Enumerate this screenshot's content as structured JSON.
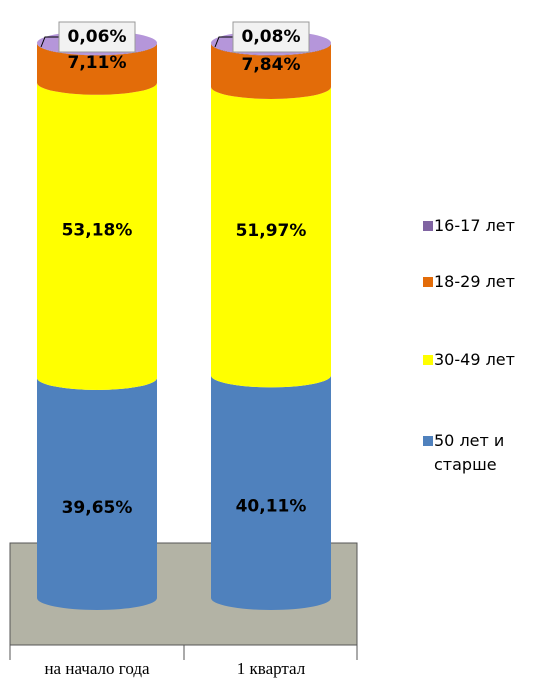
{
  "chart_data": {
    "type": "stacked_cylinder",
    "categories": [
      "на начало года",
      "1 квартал"
    ],
    "series": [
      {
        "name": "50 лет и старше",
        "color": "#4f81bd",
        "values": [
          39.65,
          40.11
        ],
        "value_labels": [
          "39,65%",
          "40,11%"
        ]
      },
      {
        "name": "30-49 лет",
        "color": "#ffff00",
        "values": [
          53.18,
          51.97
        ],
        "value_labels": [
          "53,18%",
          "51,97%"
        ]
      },
      {
        "name": "18-29 лет",
        "color": "#e36c09",
        "values": [
          7.11,
          7.84
        ],
        "value_labels": [
          "7,11%",
          "7,84%"
        ]
      },
      {
        "name": "16-17 лет",
        "color": "#8064a2",
        "values": [
          0.06,
          0.08
        ],
        "value_labels": [
          "0,06%",
          "0,08%"
        ]
      }
    ],
    "ylim": [
      0,
      100
    ]
  }
}
